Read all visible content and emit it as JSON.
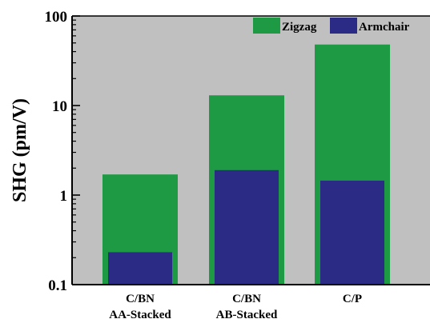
{
  "chart_data": {
    "type": "bar",
    "title": "",
    "xlabel": "",
    "ylabel": "SHG (pm/V)",
    "yscale": "log",
    "ylim": [
      0.1,
      100
    ],
    "yticks": [
      {
        "value": 0.1,
        "label": "0.1"
      },
      {
        "value": 1,
        "label": "1"
      },
      {
        "value": 10,
        "label": "10"
      },
      {
        "value": 100,
        "label": "100"
      }
    ],
    "categories": [
      {
        "line1": "C/BN",
        "line2": "AA-Stacked"
      },
      {
        "line1": "C/BN",
        "line2": "AB-Stacked"
      },
      {
        "line1": "C/P",
        "line2": ""
      }
    ],
    "series": [
      {
        "name": "Zigzag",
        "color": "#1e9a44",
        "values": [
          1.7,
          13,
          48
        ],
        "width": "wide"
      },
      {
        "name": "Armchair",
        "color": "#2b2a85",
        "values": [
          0.23,
          1.9,
          1.45
        ],
        "width": "narrow"
      }
    ],
    "overlap": true,
    "legend": "top-right",
    "grid": false,
    "plot_background": "#c0c0c0"
  }
}
